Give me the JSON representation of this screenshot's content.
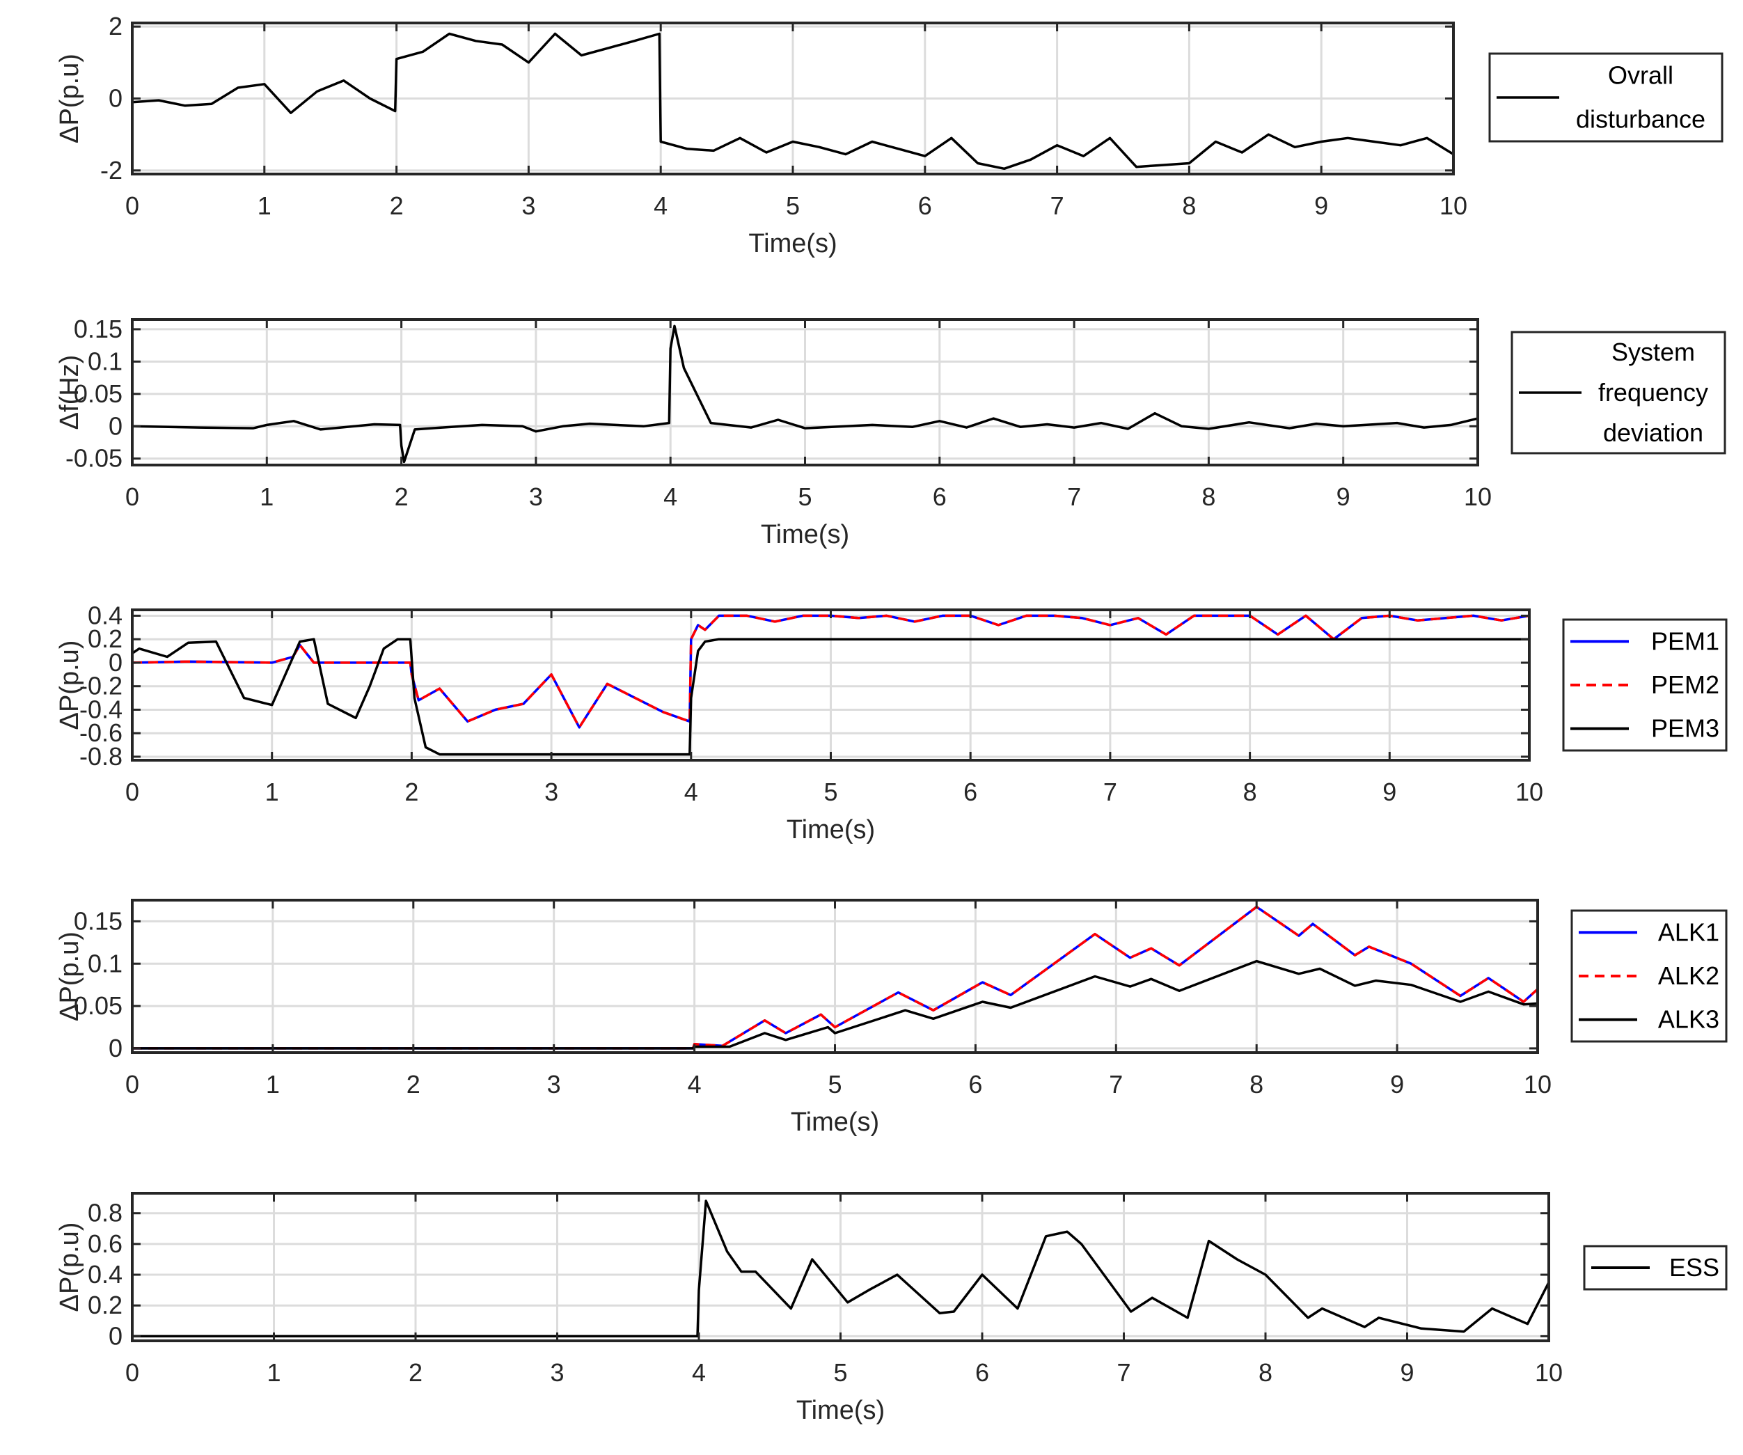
{
  "chart_data": [
    {
      "type": "line",
      "xlabel": "Time(s)",
      "ylabel": "ΔP(p.u)",
      "xlim": [
        0,
        10
      ],
      "ylim": [
        -2.1,
        2.1
      ],
      "xticks": [
        0,
        1,
        2,
        3,
        4,
        5,
        6,
        7,
        8,
        9,
        10
      ],
      "yticks": [
        -2,
        0,
        2
      ],
      "ytick_labels": [
        "-2",
        "0",
        "2"
      ],
      "grid": true,
      "legend_position": "right-outside",
      "series": [
        {
          "name": "Ovrall disturbance",
          "color": "#000000",
          "dash": "solid",
          "x": [
            0,
            0.2,
            0.4,
            0.6,
            0.8,
            1.0,
            1.2,
            1.4,
            1.6,
            1.8,
            1.99,
            2.0,
            2.2,
            2.4,
            2.6,
            2.8,
            3.0,
            3.2,
            3.4,
            3.6,
            3.8,
            3.99,
            4.0,
            4.2,
            4.4,
            4.6,
            4.8,
            5.0,
            5.2,
            5.4,
            5.6,
            5.8,
            6.0,
            6.2,
            6.4,
            6.6,
            6.8,
            7.0,
            7.2,
            7.4,
            7.6,
            7.8,
            8.0,
            8.2,
            8.4,
            8.6,
            8.8,
            9.0,
            9.2,
            9.4,
            9.6,
            9.8,
            10.0
          ],
          "y": [
            -0.1,
            -0.05,
            -0.2,
            -0.15,
            0.3,
            0.4,
            -0.4,
            0.2,
            0.5,
            0.0,
            -0.35,
            1.1,
            1.3,
            1.8,
            1.6,
            1.5,
            1.0,
            1.8,
            1.2,
            1.4,
            1.6,
            1.8,
            -1.2,
            -1.4,
            -1.45,
            -1.1,
            -1.5,
            -1.2,
            -1.35,
            -1.55,
            -1.2,
            -1.4,
            -1.6,
            -1.1,
            -1.8,
            -1.95,
            -1.7,
            -1.3,
            -1.6,
            -1.1,
            -1.9,
            -1.85,
            -1.8,
            -1.2,
            -1.5,
            -1.0,
            -1.35,
            -1.2,
            -1.1,
            -1.2,
            -1.3,
            -1.1,
            -1.55
          ]
        }
      ]
    },
    {
      "type": "line",
      "xlabel": "Time(s)",
      "ylabel": "Δf(Hz)",
      "xlim": [
        0,
        10
      ],
      "ylim": [
        -0.06,
        0.165
      ],
      "xticks": [
        0,
        1,
        2,
        3,
        4,
        5,
        6,
        7,
        8,
        9,
        10
      ],
      "yticks": [
        -0.05,
        0,
        0.05,
        0.1,
        0.15
      ],
      "ytick_labels": [
        "-0.05",
        "0",
        "0.05",
        "0.1",
        "0.15"
      ],
      "grid": true,
      "legend_position": "right-outside",
      "series": [
        {
          "name": "System frequency deviation",
          "color": "#000000",
          "dash": "solid",
          "x": [
            0,
            0.5,
            0.9,
            1.0,
            1.2,
            1.4,
            1.8,
            1.99,
            2.0,
            2.02,
            2.1,
            2.3,
            2.6,
            2.9,
            3.0,
            3.2,
            3.4,
            3.8,
            3.99,
            4.0,
            4.03,
            4.1,
            4.3,
            4.6,
            4.8,
            5.0,
            5.5,
            5.8,
            6.0,
            6.2,
            6.4,
            6.6,
            6.8,
            7.0,
            7.2,
            7.4,
            7.6,
            7.8,
            8.0,
            8.3,
            8.6,
            8.8,
            9.0,
            9.4,
            9.6,
            9.8,
            10.0
          ],
          "y": [
            0,
            -0.002,
            -0.003,
            0.002,
            0.008,
            -0.005,
            0.003,
            0.002,
            -0.03,
            -0.055,
            -0.005,
            -0.002,
            0.002,
            0.0,
            -0.008,
            0.0,
            0.004,
            0.0,
            0.005,
            0.12,
            0.155,
            0.09,
            0.005,
            -0.002,
            0.01,
            -0.003,
            0.002,
            -0.001,
            0.008,
            -0.002,
            0.012,
            -0.001,
            0.003,
            -0.002,
            0.005,
            -0.004,
            0.02,
            0.0,
            -0.004,
            0.006,
            -0.003,
            0.004,
            0.0,
            0.005,
            -0.002,
            0.002,
            0.012
          ]
        }
      ]
    },
    {
      "type": "line",
      "xlabel": "Time(s)",
      "ylabel": "ΔP(p.u)",
      "xlim": [
        0,
        10
      ],
      "ylim": [
        -0.83,
        0.45
      ],
      "xticks": [
        0,
        1,
        2,
        3,
        4,
        5,
        6,
        7,
        8,
        9,
        10
      ],
      "yticks": [
        -0.8,
        -0.6,
        -0.4,
        -0.2,
        0,
        0.2,
        0.4
      ],
      "ytick_labels": [
        "-0.8",
        "-0.6",
        "-0.4",
        "-0.2",
        "0",
        "0.2",
        "0.4"
      ],
      "grid": true,
      "legend_position": "right-outside",
      "series": [
        {
          "name": "PEM1",
          "color": "#0000ff",
          "dash": "solid",
          "x": [
            0,
            0.4,
            1.0,
            1.15,
            1.2,
            1.3,
            1.8,
            1.99,
            2.0,
            2.05,
            2.2,
            2.4,
            2.6,
            2.8,
            3.0,
            3.2,
            3.4,
            3.6,
            3.8,
            3.99,
            4.0,
            4.05,
            4.1,
            4.2,
            4.4,
            4.6,
            4.8,
            5.0,
            5.2,
            5.4,
            5.6,
            5.8,
            6.0,
            6.2,
            6.4,
            6.6,
            6.8,
            7.0,
            7.2,
            7.4,
            7.6,
            7.8,
            8.0,
            8.2,
            8.4,
            8.6,
            8.8,
            9.0,
            9.2,
            9.4,
            9.6,
            9.8,
            10.0
          ],
          "y": [
            0,
            0.01,
            0,
            0.05,
            0.15,
            0,
            0,
            0,
            -0.1,
            -0.32,
            -0.22,
            -0.5,
            -0.4,
            -0.35,
            -0.1,
            -0.55,
            -0.18,
            -0.3,
            -0.42,
            -0.5,
            0.2,
            0.32,
            0.28,
            0.4,
            0.4,
            0.35,
            0.4,
            0.4,
            0.38,
            0.4,
            0.35,
            0.4,
            0.4,
            0.32,
            0.4,
            0.4,
            0.38,
            0.32,
            0.38,
            0.24,
            0.4,
            0.4,
            0.4,
            0.24,
            0.4,
            0.2,
            0.38,
            0.4,
            0.36,
            0.38,
            0.4,
            0.36,
            0.4
          ]
        },
        {
          "name": "PEM2",
          "color": "#ff0000",
          "dash": "dashed",
          "x": [
            0,
            0.4,
            1.0,
            1.15,
            1.2,
            1.3,
            1.8,
            1.99,
            2.0,
            2.05,
            2.2,
            2.4,
            2.6,
            2.8,
            3.0,
            3.2,
            3.4,
            3.6,
            3.8,
            3.99,
            4.0,
            4.05,
            4.1,
            4.2,
            4.4,
            4.6,
            4.8,
            5.0,
            5.2,
            5.4,
            5.6,
            5.8,
            6.0,
            6.2,
            6.4,
            6.6,
            6.8,
            7.0,
            7.2,
            7.4,
            7.6,
            7.8,
            8.0,
            8.2,
            8.4,
            8.6,
            8.8,
            9.0,
            9.2,
            9.4,
            9.6,
            9.8,
            10.0
          ],
          "y": [
            0,
            0.01,
            0,
            0.05,
            0.15,
            0,
            0,
            0,
            -0.1,
            -0.32,
            -0.22,
            -0.5,
            -0.4,
            -0.35,
            -0.1,
            -0.55,
            -0.18,
            -0.3,
            -0.42,
            -0.5,
            0.2,
            0.32,
            0.28,
            0.4,
            0.4,
            0.35,
            0.4,
            0.4,
            0.38,
            0.4,
            0.35,
            0.4,
            0.4,
            0.32,
            0.4,
            0.4,
            0.38,
            0.32,
            0.38,
            0.24,
            0.4,
            0.4,
            0.4,
            0.24,
            0.4,
            0.2,
            0.38,
            0.4,
            0.36,
            0.38,
            0.4,
            0.36,
            0.4
          ]
        },
        {
          "name": "PEM3",
          "color": "#000000",
          "dash": "solid",
          "x": [
            0,
            0.05,
            0.25,
            0.4,
            0.6,
            0.8,
            1.0,
            1.2,
            1.3,
            1.4,
            1.6,
            1.7,
            1.8,
            1.9,
            1.99,
            2.02,
            2.1,
            2.2,
            3.0,
            3.99,
            4.0,
            4.05,
            4.1,
            4.2,
            6.0,
            8.0,
            10.0
          ],
          "y": [
            0.08,
            0.12,
            0.05,
            0.17,
            0.18,
            -0.3,
            -0.36,
            0.18,
            0.2,
            -0.35,
            -0.47,
            -0.2,
            0.12,
            0.2,
            0.2,
            -0.3,
            -0.72,
            -0.78,
            -0.78,
            -0.78,
            -0.3,
            0.1,
            0.18,
            0.2,
            0.2,
            0.2,
            0.2
          ]
        }
      ]
    },
    {
      "type": "line",
      "xlabel": "Time(s)",
      "ylabel": "ΔP(p.u)",
      "xlim": [
        0,
        10
      ],
      "ylim": [
        -0.005,
        0.175
      ],
      "xticks": [
        0,
        1,
        2,
        3,
        4,
        5,
        6,
        7,
        8,
        9,
        10
      ],
      "yticks": [
        0,
        0.05,
        0.1,
        0.15
      ],
      "ytick_labels": [
        "0",
        "0.05",
        "0.1",
        "0.15"
      ],
      "grid": true,
      "legend_position": "right-outside",
      "series": [
        {
          "name": "ALK1",
          "color": "#0000ff",
          "dash": "solid",
          "x": [
            0,
            3.99,
            4.0,
            4.2,
            4.5,
            4.65,
            4.9,
            5.0,
            5.45,
            5.7,
            6.05,
            6.25,
            6.85,
            7.1,
            7.25,
            7.45,
            8.0,
            8.3,
            8.4,
            8.7,
            8.8,
            9.1,
            9.45,
            9.65,
            9.9,
            10.0
          ],
          "y": [
            0,
            0,
            0.005,
            0.003,
            0.033,
            0.018,
            0.04,
            0.025,
            0.066,
            0.045,
            0.078,
            0.063,
            0.135,
            0.107,
            0.118,
            0.098,
            0.167,
            0.133,
            0.147,
            0.11,
            0.12,
            0.1,
            0.062,
            0.083,
            0.055,
            0.07
          ]
        },
        {
          "name": "ALK2",
          "color": "#ff0000",
          "dash": "dashed",
          "x": [
            0,
            3.99,
            4.0,
            4.2,
            4.5,
            4.65,
            4.9,
            5.0,
            5.45,
            5.7,
            6.05,
            6.25,
            6.85,
            7.1,
            7.25,
            7.45,
            8.0,
            8.3,
            8.4,
            8.7,
            8.8,
            9.1,
            9.45,
            9.65,
            9.9,
            10.0
          ],
          "y": [
            0,
            0,
            0.005,
            0.003,
            0.033,
            0.018,
            0.04,
            0.025,
            0.066,
            0.045,
            0.078,
            0.063,
            0.135,
            0.107,
            0.118,
            0.098,
            0.167,
            0.133,
            0.147,
            0.11,
            0.12,
            0.1,
            0.062,
            0.083,
            0.055,
            0.07
          ]
        },
        {
          "name": "ALK3",
          "color": "#000000",
          "dash": "solid",
          "x": [
            0,
            3.99,
            4.0,
            4.25,
            4.5,
            4.65,
            4.95,
            5.0,
            5.5,
            5.7,
            6.05,
            6.25,
            6.85,
            7.1,
            7.25,
            7.45,
            8.0,
            8.3,
            8.45,
            8.7,
            8.85,
            9.1,
            9.45,
            9.65,
            9.9,
            10.0
          ],
          "y": [
            0,
            0,
            0.002,
            0.002,
            0.018,
            0.01,
            0.025,
            0.018,
            0.045,
            0.035,
            0.055,
            0.048,
            0.085,
            0.073,
            0.082,
            0.068,
            0.103,
            0.088,
            0.094,
            0.074,
            0.08,
            0.075,
            0.055,
            0.067,
            0.052,
            0.053
          ]
        }
      ]
    },
    {
      "type": "line",
      "xlabel": "Time(s)",
      "ylabel": "ΔP(p.u)",
      "xlim": [
        0,
        10
      ],
      "ylim": [
        -0.03,
        0.93
      ],
      "xticks": [
        0,
        1,
        2,
        3,
        4,
        5,
        6,
        7,
        8,
        9,
        10
      ],
      "yticks": [
        0,
        0.2,
        0.4,
        0.6,
        0.8
      ],
      "ytick_labels": [
        "0",
        "0.2",
        "0.4",
        "0.6",
        "0.8"
      ],
      "grid": true,
      "legend_position": "right-outside",
      "series": [
        {
          "name": "ESS",
          "color": "#000000",
          "dash": "solid",
          "x": [
            0,
            3.99,
            4.0,
            4.05,
            4.2,
            4.3,
            4.4,
            4.65,
            4.8,
            5.05,
            5.2,
            5.4,
            5.7,
            5.8,
            6.0,
            6.25,
            6.45,
            6.6,
            6.7,
            7.05,
            7.2,
            7.45,
            7.6,
            7.8,
            8.0,
            8.3,
            8.4,
            8.7,
            8.8,
            9.1,
            9.4,
            9.6,
            9.85,
            10.0
          ],
          "y": [
            0,
            0,
            0.3,
            0.88,
            0.55,
            0.42,
            0.42,
            0.18,
            0.5,
            0.22,
            0.3,
            0.4,
            0.15,
            0.16,
            0.4,
            0.18,
            0.65,
            0.68,
            0.6,
            0.16,
            0.25,
            0.12,
            0.62,
            0.5,
            0.4,
            0.12,
            0.18,
            0.06,
            0.12,
            0.05,
            0.03,
            0.18,
            0.08,
            0.35
          ]
        }
      ]
    }
  ]
}
